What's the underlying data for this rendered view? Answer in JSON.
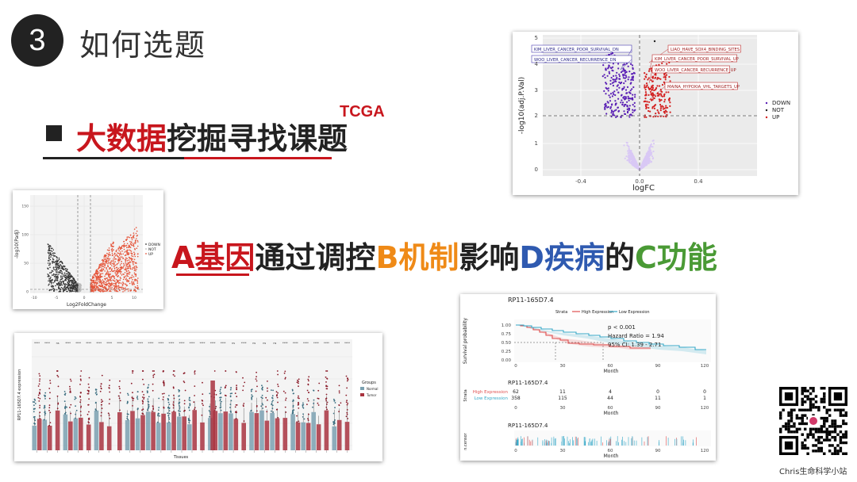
{
  "slide": {
    "number": "3",
    "title": "如何选题",
    "topic_red": "大数据",
    "topic_rest": "挖掘寻找课题",
    "tcga": "TCGA",
    "formula": [
      {
        "text": "A基因",
        "color": "#c8161d"
      },
      {
        "text": "通过调控",
        "color": "#222222"
      },
      {
        "text": "B机制",
        "color": "#ef8a17"
      },
      {
        "text": "影响",
        "color": "#222222"
      },
      {
        "text": "D疾病",
        "color": "#2f5ab0"
      },
      {
        "text": "的",
        "color": "#222222"
      },
      {
        "text": "C功能",
        "color": "#4a9a35"
      }
    ],
    "qr_label": "Chris生命科学小站"
  },
  "volcano_top": {
    "xlabel": "logFC",
    "ylabel": "-log10(adj.P.Val)",
    "xticks": [
      "-0.4",
      "0.0",
      "0.4"
    ],
    "yticks": [
      "0",
      "1",
      "2",
      "3",
      "4",
      "5"
    ],
    "legend": [
      "DOWN",
      "NOT",
      "UP"
    ],
    "labels_left": [
      "KIM_LIVER_CANCER_POOR_SURVIVAL_DN",
      "WOO_LIVER_CANCER_RECURRENCE_DN"
    ],
    "labels_right": [
      "LIAO_HAVE_SOX4_BINDING_SITES",
      "KIM_LIVER_CANCER_POOR_SURVIVAL_UP",
      "WOO_LIVER_CANCER_RECURRENCE_UP",
      "MAINA_HYPOXIA_VHL_TARGETS_UP"
    ],
    "colors": {
      "down": "#5a1fb5",
      "not": "#d9c8f5",
      "up": "#d42222"
    }
  },
  "volcano_left": {
    "xlabel": "Log2FoldChange",
    "ylabel": "-log10(Padj)",
    "legend": [
      "DOWN",
      "NOT",
      "UP"
    ],
    "xticks": [
      "-10",
      "-5",
      "0",
      "5",
      "10"
    ],
    "yticks": [
      "0",
      "50",
      "100",
      "150"
    ],
    "colors": {
      "down": "#333333",
      "not": "#bbbbbb",
      "up": "#e5553a"
    }
  },
  "boxplot": {
    "xlabel": "Tissues",
    "ylabel": "RP11-165D7.4 expression",
    "legend_title": "Groups",
    "legend": [
      "Normal",
      "Tumor"
    ],
    "colors": {
      "normal": "#7aa0b0",
      "tumor": "#a8333f"
    }
  },
  "survival": {
    "title": "RP11-165D7.4",
    "strata_label": "Strata",
    "strata": [
      "High Expression",
      "Low Expression"
    ],
    "pval": "p < 0.001",
    "hr": "Hazard Ratio = 1.94",
    "ci": "95% CI: 1.39 - 2.71",
    "ylabel": "Survival probability",
    "xlabel": "Month",
    "yticks": [
      "0.00",
      "0.25",
      "0.50",
      "0.75",
      "1.00"
    ],
    "xticks": [
      "0",
      "30",
      "60",
      "90",
      "120"
    ],
    "risk_title": "RP11-165D7.4",
    "risk_ylabel": "Strata",
    "risk_rows": [
      {
        "name": "High Expression",
        "values": [
          "62",
          "11",
          "4",
          "0",
          "0"
        ],
        "color": "#e05050"
      },
      {
        "name": "Low Expression",
        "values": [
          "358",
          "115",
          "44",
          "11",
          "1"
        ],
        "color": "#35a8c8"
      }
    ],
    "censor_title": "RP11-165D7.4",
    "censor_ylabel": "n.censor",
    "colors": {
      "high": "#e05050",
      "low": "#35a8c8"
    }
  }
}
